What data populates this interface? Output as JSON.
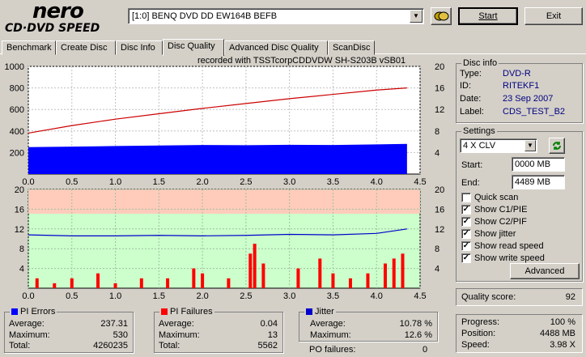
{
  "app": {
    "logo_top": "nero",
    "logo_bottom": "CD·DVD SPEED"
  },
  "drive": {
    "value": "[1:0]   BENQ DVD DD EW164B BEFB"
  },
  "buttons": {
    "start": "Start",
    "exit": "Exit",
    "advanced": "Advanced"
  },
  "tabs": [
    "Benchmark",
    "Create Disc",
    "Disc Info",
    "Disc Quality",
    "Advanced Disc Quality",
    "ScanDisc"
  ],
  "chart_header": "recorded with TSSTcorpCDDVDW SH-S203B  vSB01",
  "disc_info": {
    "title": "Disc info",
    "type_label": "Type:",
    "type": "DVD-R",
    "id_label": "ID:",
    "id": "RITEKF1",
    "date_label": "Date:",
    "date": "23 Sep 2007",
    "label_label": "Label:",
    "label": "CDS_TEST_B2"
  },
  "settings": {
    "title": "Settings",
    "speed": "4 X CLV",
    "start_label": "Start:",
    "start": "0000 MB",
    "end_label": "End:",
    "end": "4489 MB",
    "checks": [
      {
        "label": "Quick scan",
        "checked": false
      },
      {
        "label": "Show C1/PIE",
        "checked": true
      },
      {
        "label": "Show C2/PIF",
        "checked": true
      },
      {
        "label": "Show jitter",
        "checked": true
      },
      {
        "label": "Show read speed",
        "checked": true
      },
      {
        "label": "Show write speed",
        "checked": true
      }
    ]
  },
  "quality": {
    "label": "Quality score:",
    "value": "92"
  },
  "progress": {
    "progress_label": "Progress:",
    "progress": "100 %",
    "position_label": "Position:",
    "position": "4488 MB",
    "speed_label": "Speed:",
    "speed": "3.98 X"
  },
  "pi_errors": {
    "title": "PI Errors",
    "avg_label": "Average:",
    "avg": "237.31",
    "max_label": "Maximum:",
    "max": "530",
    "total_label": "Total:",
    "total": "4260235"
  },
  "pi_failures": {
    "title": "PI Failures",
    "avg_label": "Average:",
    "avg": "0.04",
    "max_label": "Maximum:",
    "max": "13",
    "total_label": "Total:",
    "total": "5562"
  },
  "jitter": {
    "title": "Jitter",
    "avg_label": "Average:",
    "avg": "10.78 %",
    "max_label": "Maximum:",
    "max": "12.6 %",
    "po_label": "PO failures:",
    "po": "0"
  },
  "colors": {
    "pie": "#0000ff",
    "pif": "#ff0000",
    "jitter": "#0000cc",
    "speed": "#cc0000",
    "top_bg": "#ffffff",
    "band_green": "#ccffcc",
    "band_red": "#ffccbb"
  },
  "chart_data": [
    {
      "type": "area",
      "xlim": [
        0,
        4.5
      ],
      "ylim_left": [
        0,
        1000
      ],
      "ylim_right": [
        0,
        20
      ],
      "x_ticks": [
        "0.0",
        "0.5",
        "1.0",
        "1.5",
        "2.0",
        "2.5",
        "3.0",
        "3.5",
        "4.0",
        "4.5"
      ],
      "y_ticks_left": [
        "200",
        "400",
        "600",
        "800",
        "1000"
      ],
      "y_ticks_right": [
        "4",
        "8",
        "12",
        "16",
        "20"
      ],
      "series": [
        {
          "kind": "pie",
          "x": [
            0.0,
            0.5,
            1.0,
            1.5,
            2.0,
            2.5,
            3.0,
            3.5,
            4.0,
            4.35
          ],
          "y": [
            250,
            255,
            260,
            265,
            270,
            268,
            272,
            270,
            275,
            280
          ]
        },
        {
          "kind": "read_speed",
          "x": [
            0.0,
            0.5,
            1.0,
            1.5,
            2.0,
            2.5,
            3.0,
            3.5,
            4.0,
            4.35
          ],
          "y": [
            7.6,
            9.0,
            10.2,
            11.2,
            12.2,
            13.1,
            14.0,
            14.8,
            15.6,
            16.0
          ]
        }
      ]
    },
    {
      "type": "bar",
      "xlim": [
        0,
        4.5
      ],
      "ylim": [
        0,
        20
      ],
      "x_ticks": [
        "0.0",
        "0.5",
        "1.0",
        "1.5",
        "2.0",
        "2.5",
        "3.0",
        "3.5",
        "4.0",
        "4.5"
      ],
      "y_ticks": [
        "4",
        "8",
        "12",
        "16",
        "20"
      ],
      "series": [
        {
          "kind": "jitter",
          "x": [
            0.0,
            0.5,
            1.0,
            1.5,
            2.0,
            2.5,
            3.0,
            3.5,
            4.0,
            4.35
          ],
          "y": [
            10.8,
            10.6,
            10.6,
            10.7,
            10.6,
            10.7,
            10.9,
            10.8,
            11.1,
            12.0
          ]
        },
        {
          "kind": "pif",
          "x": [
            0.1,
            0.3,
            0.5,
            0.8,
            1.0,
            1.3,
            1.6,
            1.9,
            2.0,
            2.3,
            2.55,
            2.6,
            2.7,
            3.1,
            3.35,
            3.5,
            3.7,
            3.9,
            4.1,
            4.2,
            4.3
          ],
          "y": [
            2,
            1,
            2,
            3,
            1,
            2,
            2,
            4,
            3,
            2,
            7,
            9,
            5,
            4,
            6,
            3,
            2,
            3,
            5,
            6,
            7
          ]
        }
      ]
    }
  ]
}
